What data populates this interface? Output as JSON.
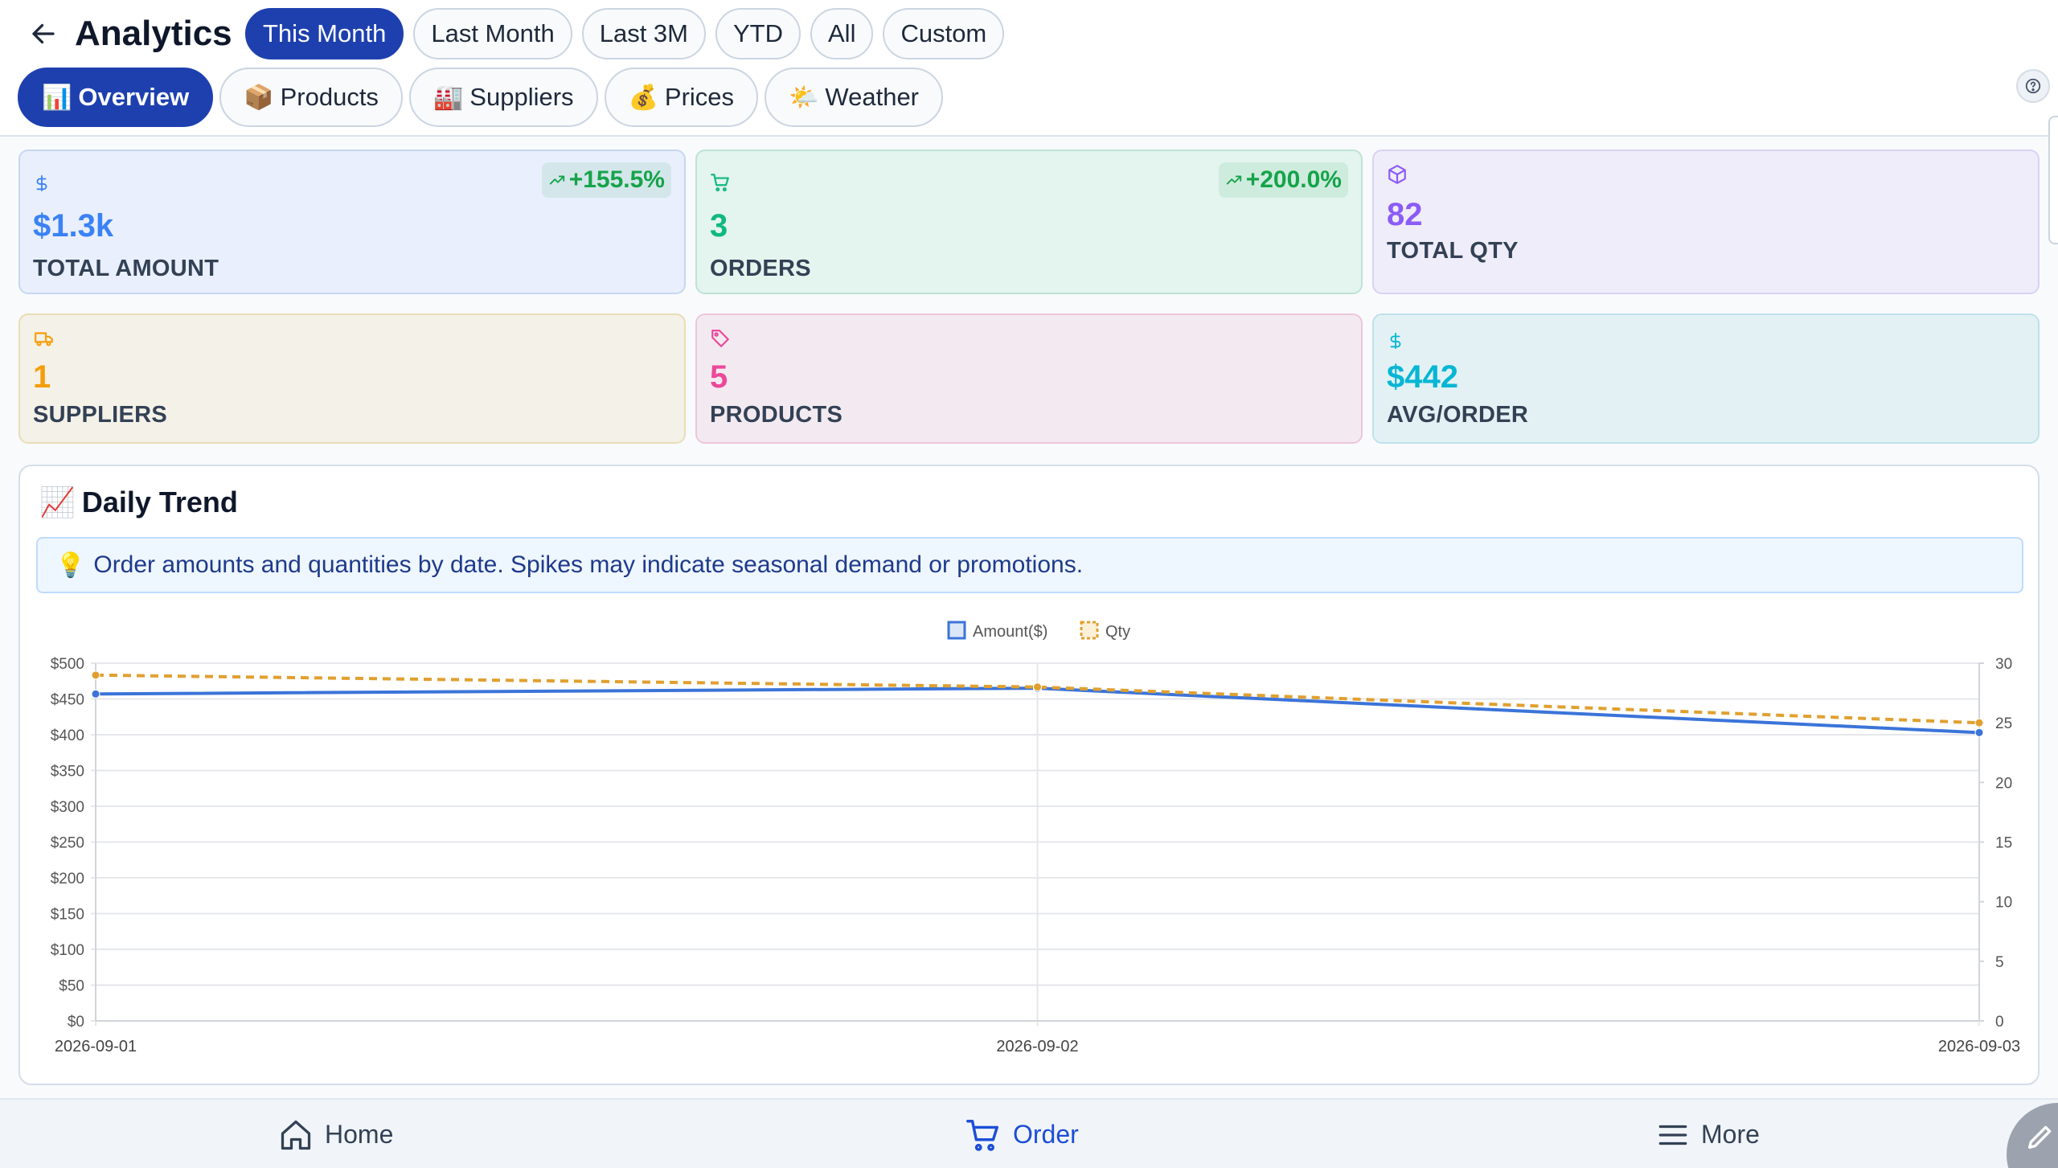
{
  "header": {
    "title": "Analytics",
    "date_ranges": [
      {
        "label": "This Month",
        "active": true
      },
      {
        "label": "Last Month",
        "active": false
      },
      {
        "label": "Last 3M",
        "active": false
      },
      {
        "label": "YTD",
        "active": false
      },
      {
        "label": "All",
        "active": false
      },
      {
        "label": "Custom",
        "active": false
      }
    ],
    "tabs": [
      {
        "emoji": "📊",
        "label": "Overview",
        "active": true
      },
      {
        "emoji": "📦",
        "label": "Products",
        "active": false
      },
      {
        "emoji": "🏭",
        "label": "Suppliers",
        "active": false
      },
      {
        "emoji": "💰",
        "label": "Prices",
        "active": false
      },
      {
        "emoji": "🌤️",
        "label": "Weather",
        "active": false
      }
    ]
  },
  "stats": [
    {
      "icon": "dollar-icon",
      "value": "$1.3k",
      "label": "TOTAL AMOUNT",
      "trend": "+155.5%",
      "accent": "#3b82f6",
      "bg": "#e9effc",
      "border": "#c7d7f4"
    },
    {
      "icon": "cart-icon",
      "value": "3",
      "label": "ORDERS",
      "trend": "+200.0%",
      "accent": "#10b981",
      "bg": "#e4f4ef",
      "border": "#bfe3d5"
    },
    {
      "icon": "box-icon",
      "value": "82",
      "label": "TOTAL QTY",
      "accent": "#8b5cf6",
      "bg": "#efedf9",
      "border": "#d9d2f2"
    },
    {
      "icon": "truck-icon",
      "value": "1",
      "label": "SUPPLIERS",
      "accent": "#f59e0b",
      "bg": "#f4f1e8",
      "border": "#ebdcb8"
    },
    {
      "icon": "tag-icon",
      "value": "5",
      "label": "PRODUCTS",
      "accent": "#ec4899",
      "bg": "#f3eaf1",
      "border": "#efc5dc"
    },
    {
      "icon": "dollar-icon",
      "value": "$442",
      "label": "AVG/ORDER",
      "accent": "#06b6d4",
      "bg": "#e3f1f4",
      "border": "#bfe1ea"
    }
  ],
  "chart_section": {
    "emoji": "📈",
    "title": "Daily Trend",
    "info_emoji": "💡",
    "info": "Order amounts and quantities by date. Spikes may indicate seasonal demand or promotions."
  },
  "chart_data": {
    "type": "line",
    "x": [
      "2026-09-01",
      "2026-09-02",
      "2026-09-03"
    ],
    "series": [
      {
        "name": "Amount($)",
        "axis": "left",
        "values": [
          457,
          465,
          403
        ],
        "color": "#3b74d9",
        "style": "solid"
      },
      {
        "name": "Qty",
        "axis": "right",
        "values": [
          29,
          28,
          25
        ],
        "color": "#e0a030",
        "style": "dashed"
      }
    ],
    "y_left": {
      "min": 0,
      "max": 500,
      "step": 50,
      "tick_labels": [
        "$0",
        "$50",
        "$100",
        "$150",
        "$200",
        "$250",
        "$300",
        "$350",
        "$400",
        "$450",
        "$500"
      ]
    },
    "y_right": {
      "min": 0,
      "max": 30,
      "step": 5,
      "tick_labels": [
        "0",
        "5",
        "10",
        "15",
        "20",
        "25",
        "30"
      ]
    },
    "legend_position": "top-center",
    "grid": true
  },
  "bottom_nav": [
    {
      "icon": "home-icon",
      "label": "Home",
      "active": false
    },
    {
      "icon": "cart-icon",
      "label": "Order",
      "active": true
    },
    {
      "icon": "menu-icon",
      "label": "More",
      "active": false
    }
  ]
}
